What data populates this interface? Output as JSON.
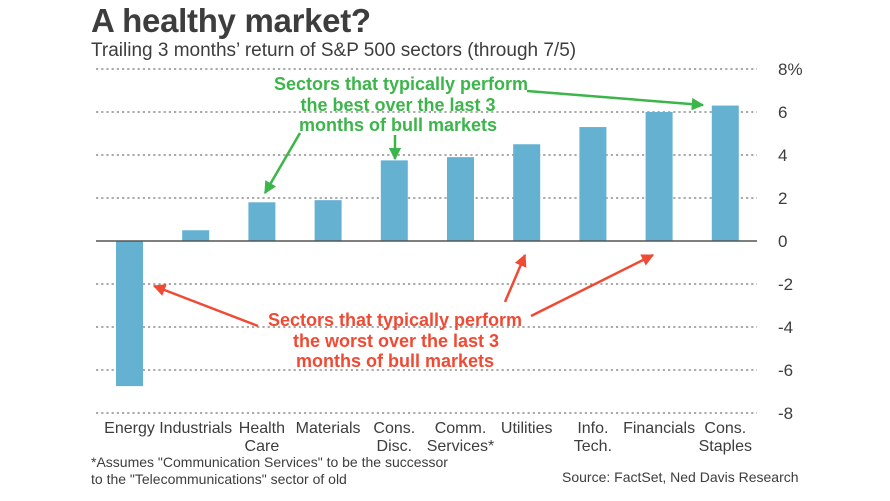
{
  "header": {
    "title": "A healthy market?",
    "subtitle": "Trailing 3 months’ return of S&P 500 sectors (through 7/5)"
  },
  "footer": {
    "footnote_line1": "*Assumes \"Communication Services\" to be the successor",
    "footnote_line2": "to the \"Telecommunications\" sector of old",
    "source": "Source: FactSet, Ned Davis Research"
  },
  "colors": {
    "bar": "#65b1d2",
    "best_annotation": "#3cb54a",
    "worst_annotation": "#f04a34",
    "text": "#3d3d3d",
    "grid": "#777777"
  },
  "chart_data": {
    "type": "bar",
    "title": "A healthy market?",
    "subtitle": "Trailing 3 months’ return of S&P 500 sectors (through 7/5)",
    "xlabel": "",
    "ylabel": "",
    "ylim": [
      -8,
      8
    ],
    "yticks": [
      8,
      6,
      4,
      2,
      0,
      -2,
      -4,
      -6,
      -8
    ],
    "ytick_labels": [
      "8%",
      "6",
      "4",
      "2",
      "0",
      "-2",
      "-4",
      "-6",
      "-8"
    ],
    "y_axis_position": "right",
    "grid": "horizontal dotted",
    "categories": [
      [
        "Energy"
      ],
      [
        "Industrials"
      ],
      [
        "Health",
        "Care"
      ],
      [
        "Materials"
      ],
      [
        "Cons.",
        "Disc."
      ],
      [
        "Comm.",
        "Services*"
      ],
      [
        "Utilities"
      ],
      [
        "Info.",
        "Tech."
      ],
      [
        "Financials"
      ],
      [
        "Cons.",
        "Staples"
      ]
    ],
    "values": [
      -6.75,
      0.5,
      1.8,
      1.9,
      3.75,
      3.9,
      4.5,
      5.3,
      6.0,
      6.3
    ],
    "annotations": [
      {
        "name": "best",
        "lines": [
          [
            "Sectors that typically perform"
          ],
          [
            "the ",
            "best",
            " over the last 3"
          ],
          [
            "months of bull markets"
          ]
        ],
        "points_to": [
          "Health Care",
          "Cons. Disc.",
          "Cons. Staples"
        ]
      },
      {
        "name": "worst",
        "lines": [
          [
            "Sectors that typically perform"
          ],
          [
            "the ",
            "worst",
            " over the last 3"
          ],
          [
            "months of bull markets"
          ]
        ],
        "points_to": [
          "Energy",
          "Utilities",
          "Financials"
        ]
      }
    ]
  }
}
